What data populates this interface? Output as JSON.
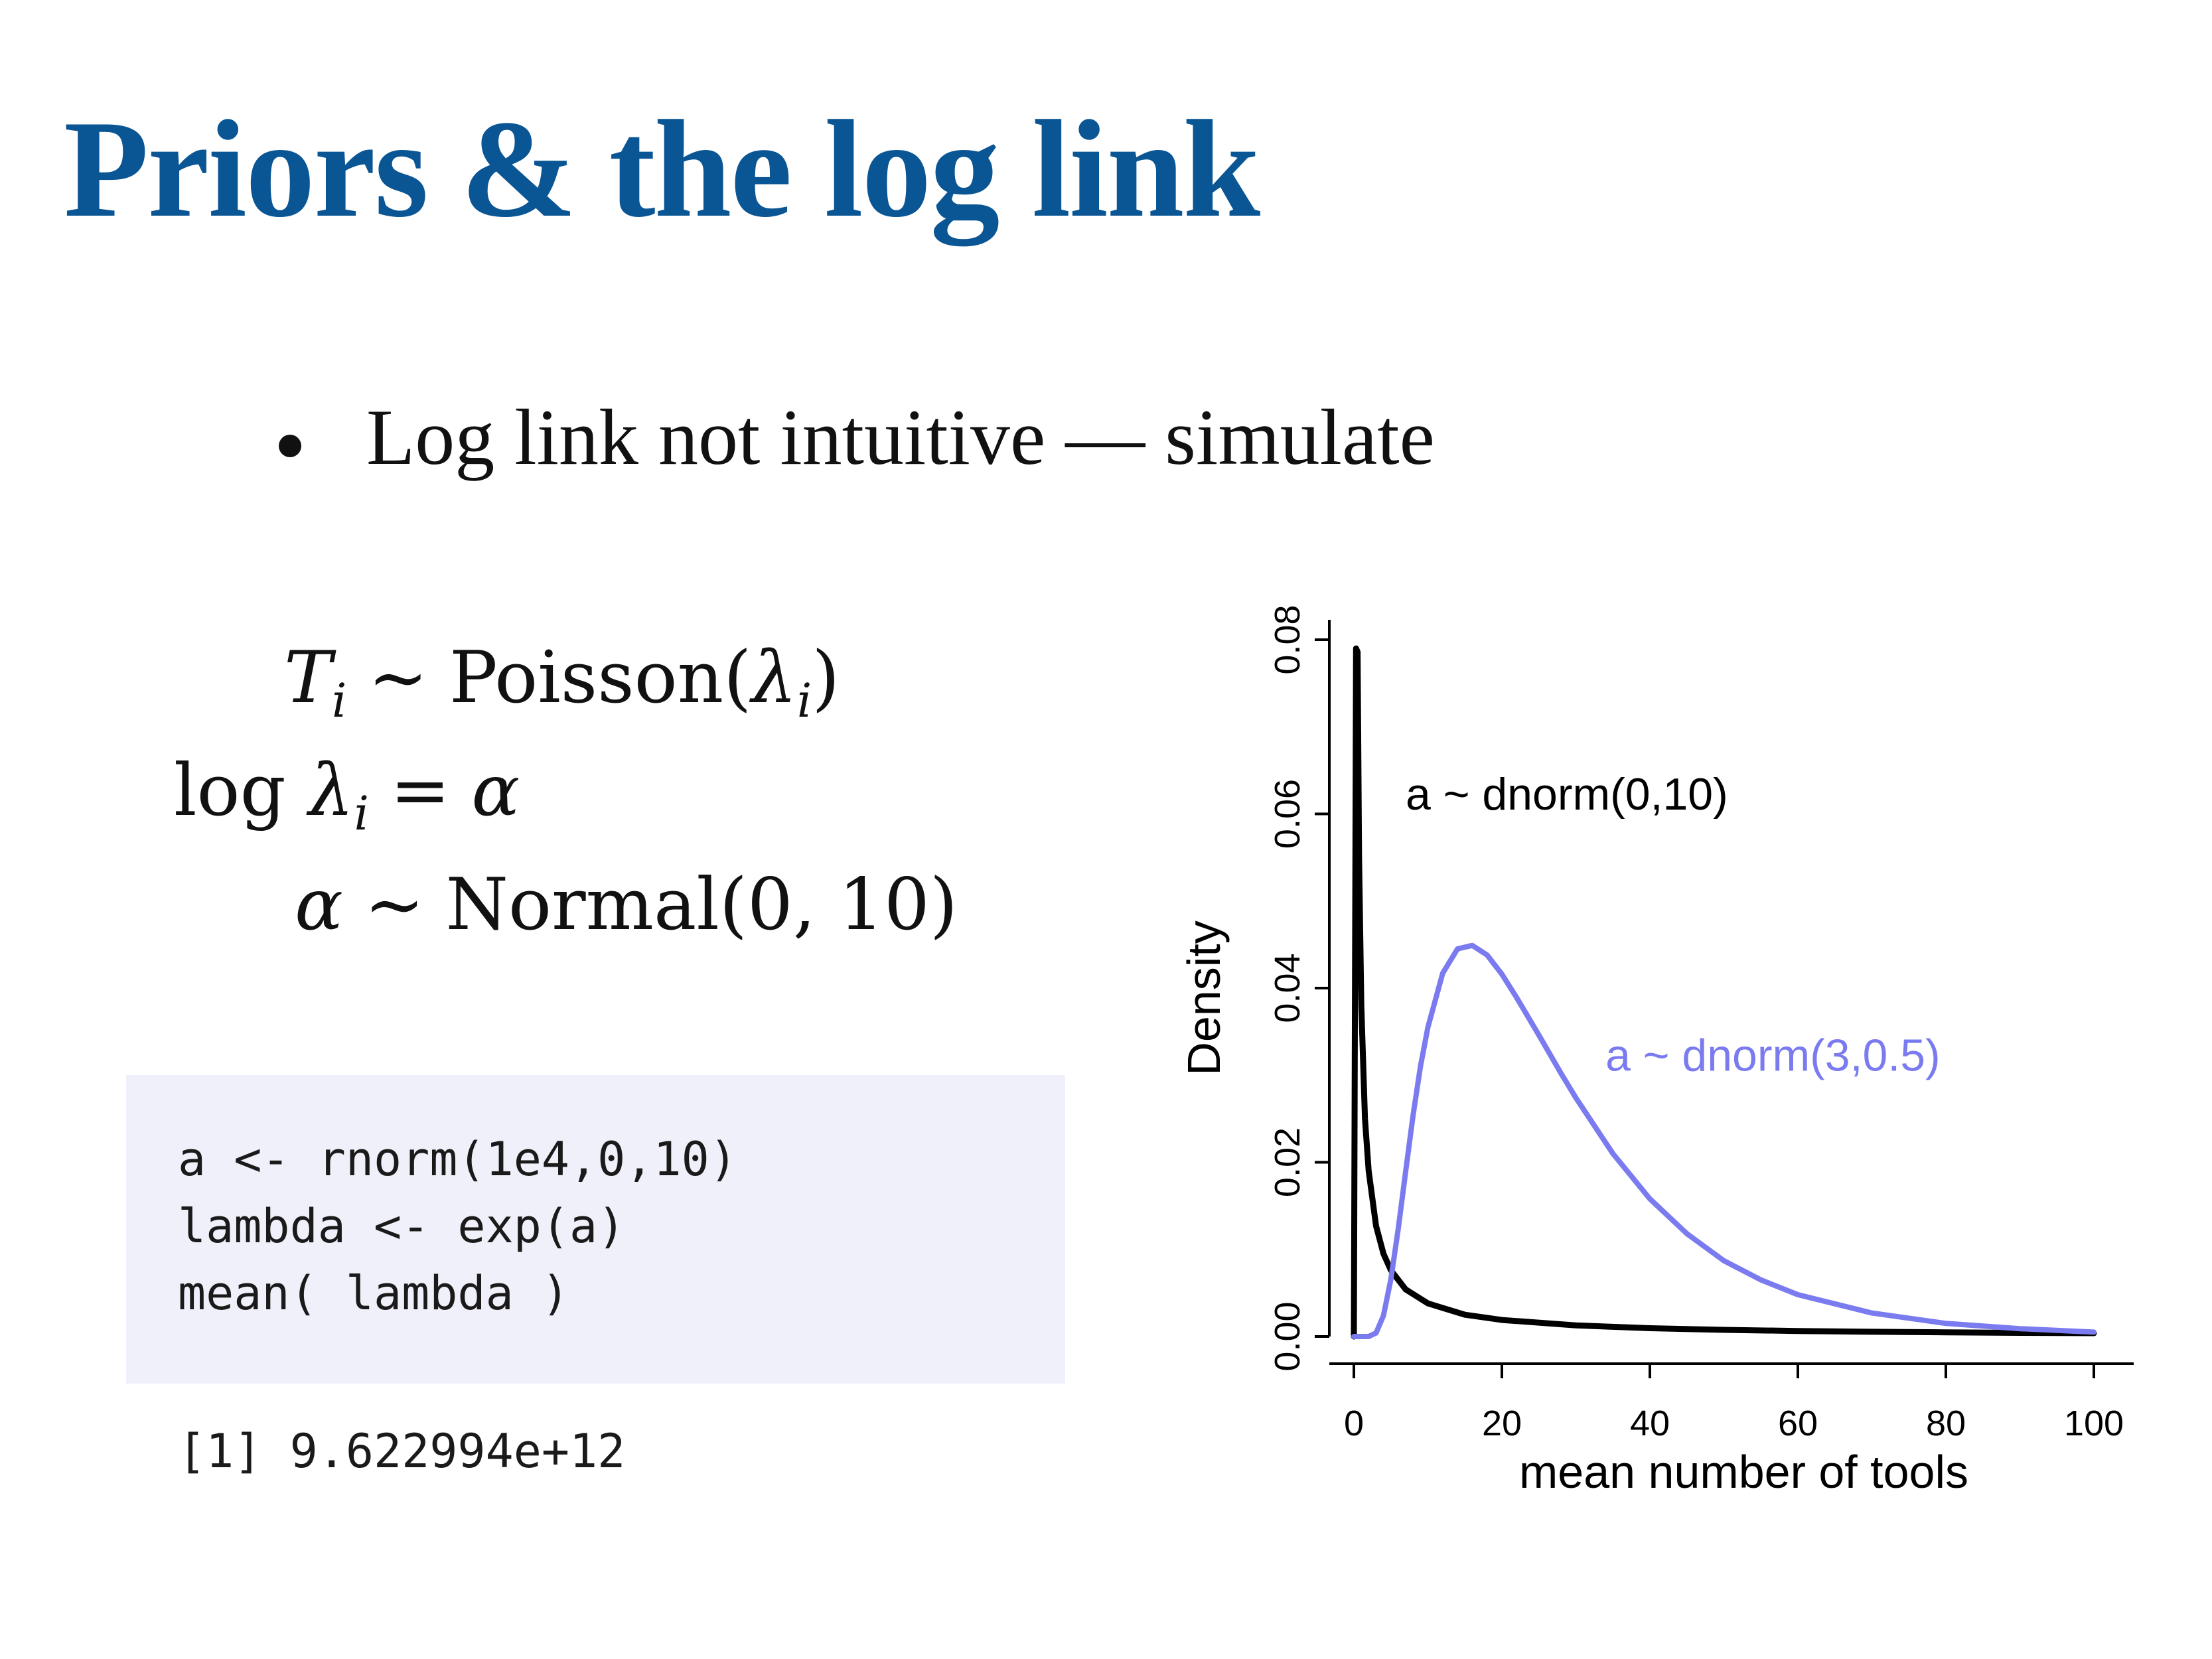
{
  "slide": {
    "title": "Priors & the log link",
    "bullet": "Log link not intuitive — simulate"
  },
  "model": {
    "line1": {
      "lhs": "T",
      "lhs_sub": "i",
      "op": "∼",
      "rhs_a": "Poisson(",
      "rhs_greek": "λ",
      "rhs_sub": "i",
      "rhs_b": ")"
    },
    "line2": {
      "lhs_a": "log ",
      "lhs_greek": "λ",
      "lhs_sub": "i",
      "op": "=",
      "rhs": "α"
    },
    "line3": {
      "lhs": "α",
      "op": "∼",
      "rhs": "Normal(0, 10)"
    }
  },
  "code": {
    "lines": [
      "a <- rnorm(1e4,0,10)",
      "lambda <- exp(a)",
      "mean( lambda )"
    ],
    "output": "[1] 9.622994e+12"
  },
  "chart_data": {
    "type": "line",
    "xlabel": "mean number of tools",
    "ylabel": "Density",
    "xlim": [
      0,
      100
    ],
    "ylim": [
      0,
      0.08
    ],
    "xticks": [
      0,
      20,
      40,
      60,
      80,
      100
    ],
    "yticks": [
      0,
      0.02,
      0.04,
      0.06,
      0.08
    ],
    "xtick_labels": [
      "0",
      "20",
      "40",
      "60",
      "80",
      "100"
    ],
    "ytick_labels": [
      "0.00",
      "0.02",
      "0.04",
      "0.06",
      "0.08"
    ],
    "grid": false,
    "series": [
      {
        "name": "a ~ dnorm(0,10)",
        "color": "#000000",
        "x": [
          0,
          0.3,
          0.5,
          0.7,
          1,
          1.5,
          2,
          3,
          4,
          5,
          7,
          10,
          15,
          20,
          30,
          40,
          50,
          60,
          70,
          80,
          90,
          100
        ],
        "y": [
          0,
          0.079,
          0.0786,
          0.055,
          0.038,
          0.025,
          0.019,
          0.0127,
          0.0095,
          0.0076,
          0.0054,
          0.0038,
          0.0025,
          0.0019,
          0.00127,
          0.00095,
          0.00076,
          0.00063,
          0.00054,
          0.00048,
          0.00042,
          0.00038
        ]
      },
      {
        "name": "a ~ dnorm(3,0.5)",
        "color": "#7b7bf0",
        "x": [
          0,
          2,
          3,
          4,
          5,
          6,
          7,
          8,
          9,
          10,
          12,
          14,
          16,
          18,
          20,
          22,
          25,
          28,
          30,
          35,
          40,
          45,
          50,
          55,
          60,
          70,
          80,
          90,
          100
        ],
        "y": [
          0,
          0,
          0.0004,
          0.0024,
          0.0066,
          0.0124,
          0.019,
          0.0254,
          0.031,
          0.0355,
          0.0417,
          0.0445,
          0.0449,
          0.0438,
          0.0416,
          0.0389,
          0.0346,
          0.0302,
          0.0274,
          0.021,
          0.0158,
          0.0118,
          0.0087,
          0.0065,
          0.0048,
          0.0027,
          0.0015,
          0.0009,
          0.0005
        ]
      }
    ],
    "annotations": [
      {
        "text": "a ~ dnorm(0,10)",
        "x": 7,
        "y": 0.0605,
        "color": "#000000"
      },
      {
        "text": "a ~ dnorm(3,0.5)",
        "x": 34,
        "y": 0.0305,
        "color": "#7b7bf0"
      }
    ]
  }
}
